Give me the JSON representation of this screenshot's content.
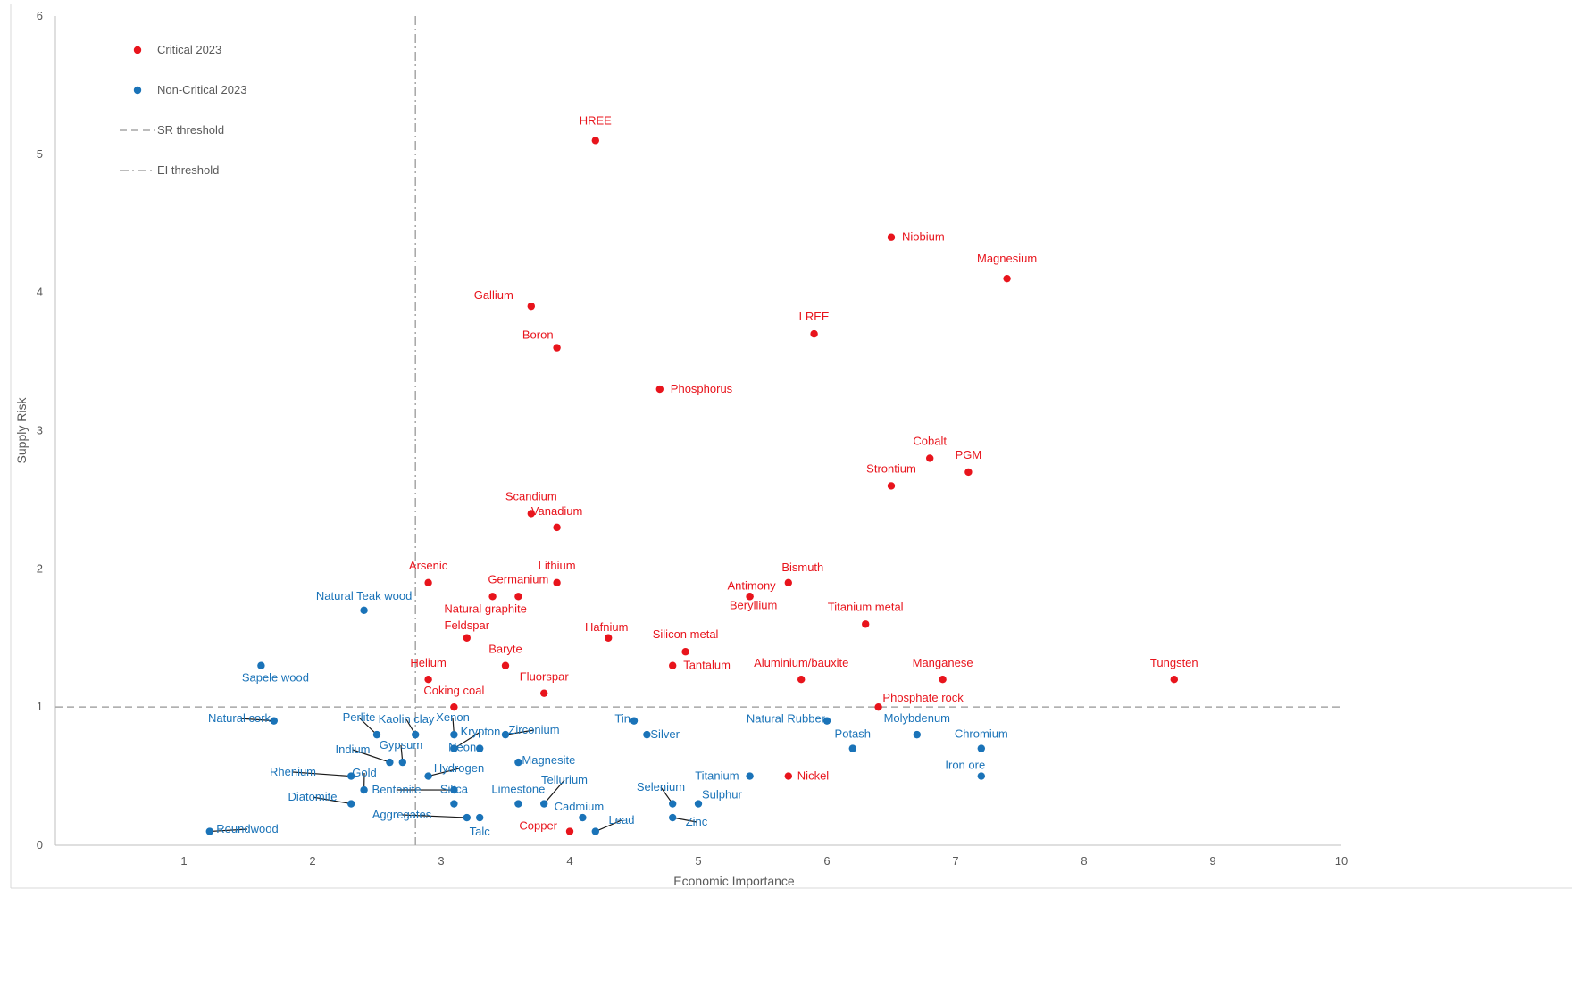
{
  "chart_data": {
    "type": "scatter",
    "title": "",
    "xlabel": "Economic Importance",
    "ylabel": "Supply Risk",
    "xlim": [
      0,
      10
    ],
    "ylim": [
      0,
      6
    ],
    "xticks": [
      "1",
      "2",
      "3",
      "4",
      "5",
      "6",
      "7",
      "8",
      "9",
      "10"
    ],
    "yticks": [
      "0",
      "1",
      "2",
      "3",
      "4",
      "5",
      "6"
    ],
    "grid": false,
    "legend_position": "top-left",
    "colors": {
      "critical": "#e8141c",
      "noncritical": "#1a73b8",
      "axis": "#bfbfbf",
      "threshold": "#a6a6a6"
    },
    "thresholds": {
      "sr": 1,
      "ei": 2.8
    },
    "legend": [
      {
        "key": "critical",
        "label": "Critical 2023",
        "kind": "dot"
      },
      {
        "key": "noncritical",
        "label": "Non-Critical 2023",
        "kind": "dot"
      },
      {
        "key": "sr",
        "label": "SR threshold",
        "kind": "dash"
      },
      {
        "key": "ei",
        "label": "EI threshold",
        "kind": "dashdot"
      }
    ],
    "series": [
      {
        "name": "Critical 2023",
        "key": "critical",
        "points": [
          {
            "label": "HREE",
            "x": 4.2,
            "y": 5.1
          },
          {
            "label": "Niobium",
            "x": 6.5,
            "y": 4.4
          },
          {
            "label": "Magnesium",
            "x": 7.4,
            "y": 4.1
          },
          {
            "label": "Gallium",
            "x": 3.7,
            "y": 3.9
          },
          {
            "label": "LREE",
            "x": 5.9,
            "y": 3.7
          },
          {
            "label": "Boron",
            "x": 3.9,
            "y": 3.6
          },
          {
            "label": "Phosphorus",
            "x": 4.7,
            "y": 3.3
          },
          {
            "label": "Cobalt",
            "x": 6.8,
            "y": 2.8
          },
          {
            "label": "PGM",
            "x": 7.1,
            "y": 2.7
          },
          {
            "label": "Strontium",
            "x": 6.5,
            "y": 2.6
          },
          {
            "label": "Scandium",
            "x": 3.7,
            "y": 2.4
          },
          {
            "label": "Vanadium",
            "x": 3.9,
            "y": 2.3
          },
          {
            "label": "Arsenic",
            "x": 2.9,
            "y": 1.9
          },
          {
            "label": "Lithium",
            "x": 3.9,
            "y": 1.9
          },
          {
            "label": "Bismuth",
            "x": 5.7,
            "y": 1.9
          },
          {
            "label": "Germanium",
            "x": 3.6,
            "y": 1.8
          },
          {
            "label": "Natural graphite",
            "x": 3.4,
            "y": 1.8
          },
          {
            "label": "Antimony",
            "x": 5.4,
            "y": 1.8
          },
          {
            "label": "Beryllium",
            "x": 5.4,
            "y": 1.8
          },
          {
            "label": "Titanium metal",
            "x": 6.3,
            "y": 1.6
          },
          {
            "label": "Feldspar",
            "x": 3.2,
            "y": 1.5
          },
          {
            "label": "Hafnium",
            "x": 4.3,
            "y": 1.5
          },
          {
            "label": "Silicon metal",
            "x": 4.9,
            "y": 1.4
          },
          {
            "label": "Baryte",
            "x": 3.5,
            "y": 1.3
          },
          {
            "label": "Tantalum",
            "x": 4.8,
            "y": 1.3
          },
          {
            "label": "Helium",
            "x": 2.9,
            "y": 1.2
          },
          {
            "label": "Aluminium/bauxite",
            "x": 5.8,
            "y": 1.2
          },
          {
            "label": "Manganese",
            "x": 6.9,
            "y": 1.2
          },
          {
            "label": "Tungsten",
            "x": 8.7,
            "y": 1.2
          },
          {
            "label": "Fluorspar",
            "x": 3.8,
            "y": 1.1
          },
          {
            "label": "Coking coal",
            "x": 3.1,
            "y": 1.0
          },
          {
            "label": "Phosphate rock",
            "x": 6.4,
            "y": 1.0
          },
          {
            "label": "Nickel",
            "x": 5.7,
            "y": 0.5
          },
          {
            "label": "Copper",
            "x": 4.0,
            "y": 0.1
          }
        ]
      },
      {
        "name": "Non-Critical 2023",
        "key": "noncritical",
        "points": [
          {
            "label": "Natural Teak wood",
            "x": 2.4,
            "y": 1.7
          },
          {
            "label": "Sapele wood",
            "x": 1.6,
            "y": 1.3
          },
          {
            "label": "Natural cork",
            "x": 1.7,
            "y": 0.9
          },
          {
            "label": "Perlite",
            "x": 2.5,
            "y": 0.8
          },
          {
            "label": "Kaolin clay",
            "x": 2.8,
            "y": 0.8
          },
          {
            "label": "Xenon",
            "x": 3.1,
            "y": 0.8
          },
          {
            "label": "Krypton",
            "x": 3.1,
            "y": 0.7
          },
          {
            "label": "Zirconium",
            "x": 3.5,
            "y": 0.8
          },
          {
            "label": "Tin",
            "x": 4.5,
            "y": 0.9
          },
          {
            "label": "Silver",
            "x": 4.6,
            "y": 0.8
          },
          {
            "label": "Natural Rubber",
            "x": 6.0,
            "y": 0.9
          },
          {
            "label": "Molybdenum",
            "x": 6.7,
            "y": 0.8
          },
          {
            "label": "Potash",
            "x": 6.2,
            "y": 0.7
          },
          {
            "label": "Chromium",
            "x": 7.2,
            "y": 0.7
          },
          {
            "label": "Indium",
            "x": 2.6,
            "y": 0.6
          },
          {
            "label": "Gypsum",
            "x": 2.7,
            "y": 0.6
          },
          {
            "label": "Neon",
            "x": 3.3,
            "y": 0.7
          },
          {
            "label": "Magnesite",
            "x": 3.6,
            "y": 0.6
          },
          {
            "label": "Iron ore",
            "x": 7.2,
            "y": 0.5
          },
          {
            "label": "Rhenium",
            "x": 2.3,
            "y": 0.5
          },
          {
            "label": "Gold",
            "x": 2.4,
            "y": 0.4
          },
          {
            "label": "Hydrogen",
            "x": 2.9,
            "y": 0.5
          },
          {
            "label": "Titanium",
            "x": 5.4,
            "y": 0.5
          },
          {
            "label": "Bentonite",
            "x": 3.1,
            "y": 0.4
          },
          {
            "label": "Silica",
            "x": 3.1,
            "y": 0.3
          },
          {
            "label": "Limestone",
            "x": 3.6,
            "y": 0.3
          },
          {
            "label": "Tellurium",
            "x": 3.8,
            "y": 0.3
          },
          {
            "label": "Selenium",
            "x": 4.8,
            "y": 0.3
          },
          {
            "label": "Sulphur",
            "x": 5.0,
            "y": 0.3
          },
          {
            "label": "Diatomite",
            "x": 2.3,
            "y": 0.3
          },
          {
            "label": "Aggregates",
            "x": 3.2,
            "y": 0.2
          },
          {
            "label": "Talc",
            "x": 3.3,
            "y": 0.2
          },
          {
            "label": "Cadmium",
            "x": 4.1,
            "y": 0.2
          },
          {
            "label": "Zinc",
            "x": 4.8,
            "y": 0.2
          },
          {
            "label": "Lead",
            "x": 4.2,
            "y": 0.1
          },
          {
            "label": "Roundwood",
            "x": 1.2,
            "y": 0.1
          }
        ]
      }
    ]
  }
}
